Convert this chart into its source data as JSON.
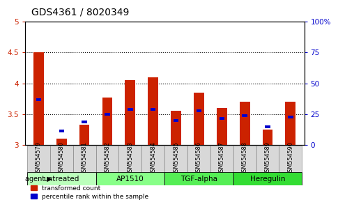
{
  "title": "GDS4361 / 8020349",
  "categories": [
    "GSM554579",
    "GSM554580",
    "GSM554581",
    "GSM554582",
    "GSM554583",
    "GSM554584",
    "GSM554585",
    "GSM554586",
    "GSM554587",
    "GSM554588",
    "GSM554589",
    "GSM554590"
  ],
  "red_values": [
    4.5,
    3.1,
    3.33,
    3.77,
    4.05,
    4.1,
    3.55,
    3.85,
    3.6,
    3.7,
    3.25,
    3.7
  ],
  "blue_values": [
    3.73,
    3.23,
    3.37,
    3.5,
    3.58,
    3.58,
    3.4,
    3.55,
    3.43,
    3.48,
    3.3,
    3.45
  ],
  "y_min": 3.0,
  "y_max": 5.0,
  "y_ticks_left": [
    3.0,
    3.5,
    4.0,
    4.5,
    5.0
  ],
  "y_ticks_right_pct": [
    0,
    25,
    50,
    75,
    100
  ],
  "agent_groups": [
    {
      "label": "untreated",
      "start": 0,
      "end": 3,
      "color": "#bbffbb"
    },
    {
      "label": "AP1510",
      "start": 3,
      "end": 6,
      "color": "#88ff88"
    },
    {
      "label": "TGF-alpha",
      "start": 6,
      "end": 9,
      "color": "#55ee55"
    },
    {
      "label": "Heregulin",
      "start": 9,
      "end": 12,
      "color": "#33dd33"
    }
  ],
  "red_color": "#cc2200",
  "blue_color": "#0000cc",
  "bar_width": 0.45,
  "base": 3.0,
  "legend_red": "transformed count",
  "legend_blue": "percentile rank within the sample",
  "left_tick_color": "#cc2200",
  "right_tick_color": "#0000cc",
  "title_fontsize": 10,
  "tick_fontsize": 7.5,
  "label_fontsize": 8,
  "dotted_lines": [
    3.5,
    4.0,
    4.5
  ],
  "bg_color": "#dddddd"
}
